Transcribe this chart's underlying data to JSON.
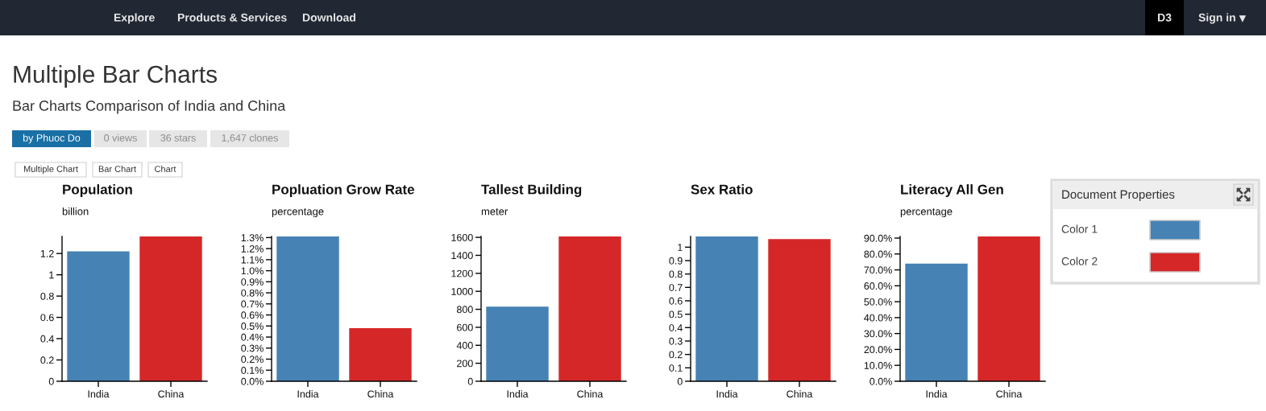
{
  "chart_data": [
    {
      "type": "other",
      "title": "Multiple Bar Charts",
      "subtitle": "Bar Charts Comparison of India and China",
      "annotations": [
        "Explore",
        "Products & Services",
        "Download",
        "D3",
        "Sign in",
        "by Phuoc Do",
        "0 views",
        "36 stars",
        "1,647 clones",
        "Multiple Chart",
        "Bar Chart",
        "Chart"
      ]
    },
    {
      "type": "bar",
      "title": "Population",
      "subtitle": "billion",
      "categories": [
        "India",
        "China"
      ],
      "values": [
        1.22,
        1.36
      ],
      "colors": [
        "#4682b4",
        "#d62728"
      ],
      "ylim": [
        0,
        1.36
      ],
      "yticks": [
        0,
        0.2,
        0.4,
        0.6,
        0.8,
        1,
        1.2
      ]
    },
    {
      "type": "bar",
      "title": "Popluation Grow Rate",
      "subtitle": "percentage",
      "categories": [
        "India",
        "China"
      ],
      "values": [
        1.31,
        0.48
      ],
      "colors": [
        "#4682b4",
        "#d62728"
      ],
      "ylim": [
        0,
        1.31
      ],
      "yticks": [
        {
          "value": 0,
          "label": "0.0%"
        },
        {
          "value": 0.1,
          "label": "0.1%"
        },
        {
          "value": 0.2,
          "label": "0.2%"
        },
        {
          "value": 0.3,
          "label": "0.3%"
        },
        {
          "value": 0.4,
          "label": "0.4%"
        },
        {
          "value": 0.5,
          "label": "0.5%"
        },
        {
          "value": 0.6,
          "label": "0.6%"
        },
        {
          "value": 0.7,
          "label": "0.7%"
        },
        {
          "value": 0.8,
          "label": "0.8%"
        },
        {
          "value": 0.9,
          "label": "0.9%"
        },
        {
          "value": 1.0,
          "label": "1.0%"
        },
        {
          "value": 1.1,
          "label": "1.1%"
        },
        {
          "value": 1.2,
          "label": "1.2%"
        },
        {
          "value": 1.3,
          "label": "1.3%"
        }
      ]
    },
    {
      "type": "bar",
      "title": "Tallest Building",
      "subtitle": "meter",
      "categories": [
        "India",
        "China"
      ],
      "values": [
        830,
        1610
      ],
      "colors": [
        "#4682b4",
        "#d62728"
      ],
      "ylim": [
        0,
        1610
      ],
      "yticks": [
        0,
        200,
        400,
        600,
        800,
        1000,
        1200,
        1400,
        1600
      ]
    },
    {
      "type": "bar",
      "title": "Sex Ratio",
      "categories": [
        "India",
        "China"
      ],
      "values": [
        1.08,
        1.06
      ],
      "colors": [
        "#4682b4",
        "#d62728"
      ],
      "ylim": [
        0,
        1.08
      ],
      "yticks": [
        0,
        0.1,
        0.2,
        0.3,
        0.4,
        0.5,
        0.6,
        0.7,
        0.8,
        0.9,
        1
      ]
    },
    {
      "type": "bar",
      "title": "Literacy All Gen",
      "subtitle": "percentage",
      "categories": [
        "India",
        "China"
      ],
      "values": [
        74,
        91
      ],
      "colors": [
        "#4682b4",
        "#d62728"
      ],
      "ylim": [
        0,
        91
      ],
      "yticks": [
        {
          "value": 0,
          "label": "0.0%"
        },
        {
          "value": 10,
          "label": "10.0%"
        },
        {
          "value": 20,
          "label": "20.0%"
        },
        {
          "value": 30,
          "label": "30.0%"
        },
        {
          "value": 40,
          "label": "40.0%"
        },
        {
          "value": 50,
          "label": "50.0%"
        },
        {
          "value": 60,
          "label": "60.0%"
        },
        {
          "value": 70,
          "label": "70.0%"
        },
        {
          "value": 80,
          "label": "80.0%"
        },
        {
          "value": 90,
          "label": "90.0%"
        }
      ]
    },
    {
      "type": "other",
      "title": "Document Properties",
      "categories": [
        "Color 1",
        "Color 2"
      ],
      "colors": [
        "#4682b4",
        "#d62728"
      ]
    }
  ]
}
